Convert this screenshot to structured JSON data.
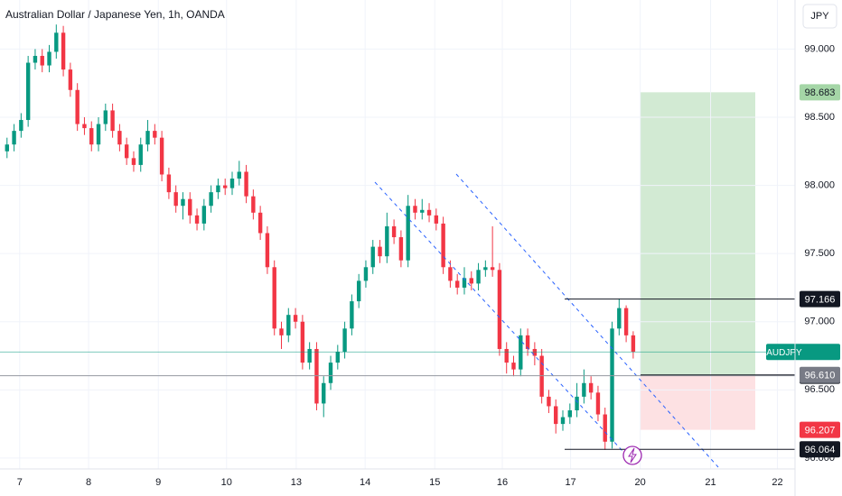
{
  "chart_data": {
    "type": "candlestick",
    "title": "Australian Dollar / Japanese Yen, 1h, OANDA",
    "currency": "JPY",
    "up_color": "#089981",
    "down_color": "#f23645",
    "grid": true,
    "xlim": [
      -1,
      112
    ],
    "xticks": [
      {
        "value": 1.8,
        "label": "7"
      },
      {
        "value": 11.6,
        "label": "8"
      },
      {
        "value": 21.5,
        "label": "9"
      },
      {
        "value": 31.2,
        "label": "10"
      },
      {
        "value": 41.1,
        "label": "13"
      },
      {
        "value": 50.9,
        "label": "14"
      },
      {
        "value": 60.8,
        "label": "15"
      },
      {
        "value": 70.4,
        "label": "16"
      },
      {
        "value": 80.1,
        "label": "17"
      },
      {
        "value": 90,
        "label": "20"
      },
      {
        "value": 100,
        "label": "21"
      },
      {
        "value": 109.5,
        "label": "22"
      }
    ],
    "ylim": [
      95.92,
      99.36
    ],
    "yticks": [
      {
        "value": 96,
        "label": "96.000"
      },
      {
        "value": 96.5,
        "label": "96.500"
      },
      {
        "value": 97,
        "label": "97.000"
      },
      {
        "value": 97.5,
        "label": "97.500"
      },
      {
        "value": 98,
        "label": "98.000"
      },
      {
        "value": 98.5,
        "label": "98.500"
      },
      {
        "value": 99,
        "label": "99.000"
      }
    ],
    "open": [
      98.25,
      98.3,
      98.4,
      98.48,
      98.9,
      98.95,
      98.88,
      98.98,
      99.12,
      98.85,
      98.7,
      98.45,
      98.42,
      98.3,
      98.45,
      98.55,
      98.4,
      98.3,
      98.2,
      98.15,
      98.3,
      98.4,
      98.35,
      98.08,
      97.95,
      97.85,
      97.9,
      97.78,
      97.72,
      97.85,
      97.95,
      98.0,
      97.98,
      98.05,
      98.1,
      97.92,
      97.8,
      97.65,
      97.4,
      96.95,
      96.9,
      97.05,
      97.0,
      96.7,
      96.8,
      96.4,
      96.55,
      96.7,
      96.78,
      96.95,
      97.15,
      97.3,
      97.4,
      97.55,
      97.48,
      97.7,
      97.62,
      97.45,
      97.85,
      97.8,
      97.82,
      97.78,
      97.72,
      97.4,
      97.3,
      97.25,
      97.32,
      97.28,
      97.38,
      97.4,
      97.38,
      96.8,
      96.7,
      96.65,
      96.9,
      96.8,
      96.75,
      96.45,
      96.38,
      96.25,
      96.3,
      96.35,
      96.45,
      96.55,
      96.48,
      96.32,
      96.12,
      96.95,
      97.1,
      96.9
    ],
    "high": [
      98.35,
      98.45,
      98.53,
      98.95,
      99.0,
      99.0,
      99.03,
      99.18,
      99.17,
      98.9,
      98.75,
      98.5,
      98.47,
      98.5,
      98.6,
      98.6,
      98.45,
      98.35,
      98.25,
      98.35,
      98.48,
      98.45,
      98.4,
      98.13,
      98.0,
      97.95,
      97.95,
      97.83,
      97.9,
      98.0,
      98.05,
      98.05,
      98.1,
      98.18,
      98.15,
      97.97,
      97.85,
      97.7,
      97.45,
      97.0,
      97.1,
      97.1,
      97.05,
      96.85,
      96.85,
      96.6,
      96.75,
      96.83,
      97.0,
      97.2,
      97.35,
      97.45,
      97.6,
      97.6,
      97.8,
      97.75,
      97.67,
      97.93,
      97.9,
      97.9,
      97.87,
      97.83,
      97.77,
      97.45,
      97.35,
      97.4,
      97.37,
      97.43,
      97.45,
      97.7,
      97.43,
      96.85,
      96.75,
      96.95,
      96.95,
      96.85,
      96.8,
      96.5,
      96.43,
      96.35,
      96.4,
      96.55,
      96.65,
      96.6,
      96.53,
      96.37,
      97.0,
      97.17,
      97.12,
      96.93
    ],
    "low": [
      98.2,
      98.25,
      98.35,
      98.43,
      98.85,
      98.83,
      98.83,
      98.93,
      98.8,
      98.65,
      98.4,
      98.37,
      98.25,
      98.25,
      98.4,
      98.35,
      98.25,
      98.15,
      98.1,
      98.1,
      98.25,
      98.3,
      98.03,
      97.9,
      97.8,
      97.75,
      97.72,
      97.67,
      97.67,
      97.8,
      97.9,
      97.93,
      97.93,
      98.0,
      97.87,
      97.75,
      97.6,
      97.35,
      96.9,
      96.8,
      96.85,
      96.95,
      96.65,
      96.65,
      96.35,
      96.3,
      96.5,
      96.65,
      96.73,
      96.9,
      97.1,
      97.25,
      97.35,
      97.43,
      97.43,
      97.57,
      97.4,
      97.4,
      97.75,
      97.75,
      97.73,
      97.67,
      97.35,
      97.25,
      97.2,
      97.2,
      97.23,
      97.23,
      97.33,
      97.33,
      96.75,
      96.62,
      96.6,
      96.6,
      96.75,
      96.68,
      96.4,
      96.33,
      96.18,
      96.2,
      96.25,
      96.3,
      96.4,
      96.43,
      96.27,
      96.06,
      96.07,
      96.9,
      96.85,
      96.73
    ],
    "close": [
      98.3,
      98.4,
      98.48,
      98.9,
      98.95,
      98.88,
      98.98,
      99.12,
      98.85,
      98.7,
      98.45,
      98.42,
      98.3,
      98.45,
      98.55,
      98.4,
      98.3,
      98.2,
      98.15,
      98.3,
      98.4,
      98.35,
      98.08,
      97.95,
      97.85,
      97.9,
      97.78,
      97.72,
      97.85,
      97.95,
      98.0,
      97.98,
      98.05,
      98.1,
      97.92,
      97.8,
      97.65,
      97.4,
      96.95,
      96.9,
      97.05,
      97.0,
      96.7,
      96.8,
      96.4,
      96.55,
      96.7,
      96.78,
      96.95,
      97.15,
      97.3,
      97.4,
      97.55,
      97.48,
      97.7,
      97.62,
      97.45,
      97.85,
      97.8,
      97.82,
      97.78,
      97.72,
      97.4,
      97.3,
      97.25,
      97.32,
      97.28,
      97.38,
      97.4,
      97.38,
      96.8,
      96.7,
      96.65,
      96.9,
      96.8,
      96.75,
      96.45,
      96.38,
      96.25,
      96.3,
      96.35,
      96.45,
      96.55,
      96.48,
      96.32,
      96.12,
      96.95,
      97.1,
      96.9,
      96.78
    ],
    "current_price": {
      "symbol": "AUDJPY",
      "value": 96.778,
      "color": "#089981"
    },
    "position": {
      "target": 98.683,
      "entry": {
        "value": 96.61,
        "label": "96.610"
      },
      "stop": 96.207,
      "target_color": "#a5d6a7",
      "entry_color": "#787b86",
      "stop_color": "#f23645"
    },
    "levels": [
      97.166,
      96.604,
      96.064
    ]
  }
}
